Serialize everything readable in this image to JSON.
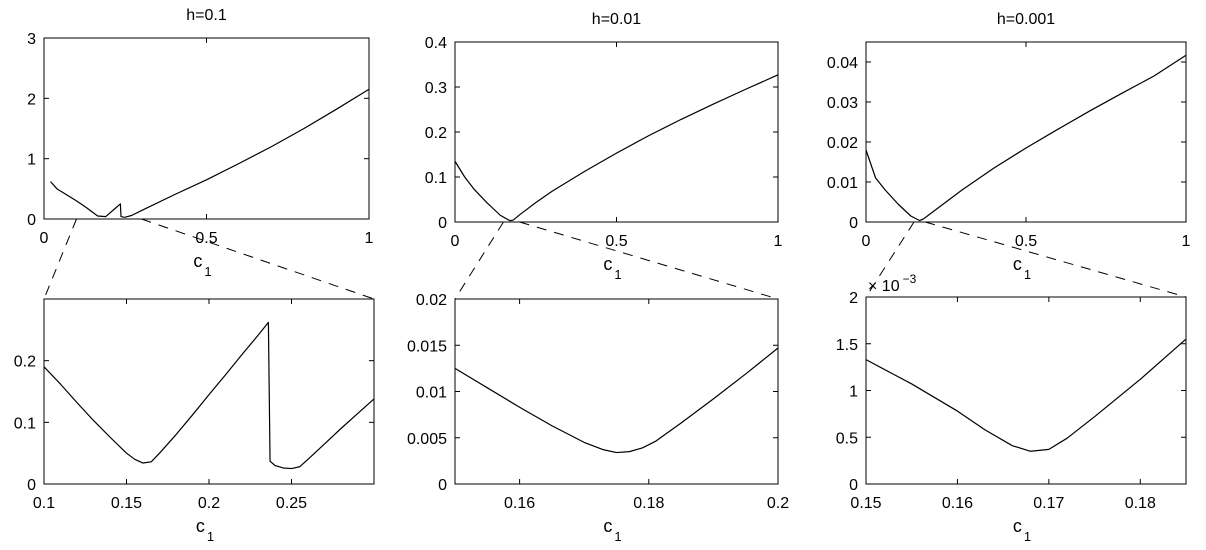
{
  "chart_data": [
    {
      "type": "line",
      "title": "h=0.1",
      "xlabel": "c",
      "xlabel_sub": "1",
      "xlim": [
        0,
        1
      ],
      "ylim": [
        0,
        3
      ],
      "xticks": [
        0,
        0.5,
        1
      ],
      "xtick_labels": [
        "0",
        "0.5",
        "1"
      ],
      "yticks": [
        0,
        1,
        2,
        3
      ],
      "ytick_labels": [
        "0",
        "1",
        "2",
        "3"
      ],
      "grid": false,
      "series": [
        {
          "x": [
            0.02,
            0.04,
            0.07,
            0.1,
            0.13,
            0.165,
            0.19,
            0.22,
            0.235,
            0.237,
            0.245,
            0.25,
            0.27,
            0.3,
            0.4,
            0.5,
            0.6,
            0.7,
            0.8,
            0.9,
            1.0
          ],
          "y": [
            0.62,
            0.5,
            0.4,
            0.3,
            0.19,
            0.05,
            0.04,
            0.18,
            0.25,
            0.04,
            0.03,
            0.03,
            0.06,
            0.14,
            0.4,
            0.65,
            0.92,
            1.2,
            1.5,
            1.82,
            2.15
          ]
        }
      ]
    },
    {
      "type": "line",
      "title": "h=0.01",
      "xlabel": "c",
      "xlabel_sub": "1",
      "xlim": [
        0,
        1
      ],
      "ylim": [
        0,
        0.4
      ],
      "xticks": [
        0,
        0.5,
        1
      ],
      "xtick_labels": [
        "0",
        "0.5",
        "1"
      ],
      "yticks": [
        0,
        0.1,
        0.2,
        0.3,
        0.4
      ],
      "ytick_labels": [
        "0",
        "0.1",
        "0.2",
        "0.3",
        "0.4"
      ],
      "grid": false,
      "series": [
        {
          "x": [
            0.0,
            0.03,
            0.06,
            0.1,
            0.14,
            0.17,
            0.18,
            0.2,
            0.25,
            0.3,
            0.4,
            0.5,
            0.6,
            0.7,
            0.8,
            0.9,
            1.0
          ],
          "y": [
            0.135,
            0.1,
            0.072,
            0.042,
            0.015,
            0.003,
            0.004,
            0.016,
            0.043,
            0.068,
            0.112,
            0.153,
            0.192,
            0.228,
            0.262,
            0.295,
            0.327
          ]
        }
      ]
    },
    {
      "type": "line",
      "title": "h=0.001",
      "xlabel": "c",
      "xlabel_sub": "1",
      "xlim": [
        0,
        1
      ],
      "ylim": [
        0,
        0.045
      ],
      "xticks": [
        0,
        0.5,
        1
      ],
      "xtick_labels": [
        "0",
        "0.5",
        "1"
      ],
      "yticks": [
        0,
        0.01,
        0.02,
        0.03,
        0.04
      ],
      "ytick_labels": [
        "0",
        "0.01",
        "0.02",
        "0.03",
        "0.04"
      ],
      "grid": false,
      "series": [
        {
          "x": [
            0.0,
            0.03,
            0.06,
            0.1,
            0.14,
            0.168,
            0.18,
            0.2,
            0.25,
            0.3,
            0.4,
            0.5,
            0.6,
            0.7,
            0.8,
            0.9,
            1.0
          ],
          "y": [
            0.018,
            0.011,
            0.008,
            0.0045,
            0.0015,
            0.00035,
            0.0008,
            0.002,
            0.005,
            0.008,
            0.0135,
            0.0185,
            0.0232,
            0.0278,
            0.0322,
            0.0365,
            0.0417
          ]
        }
      ]
    },
    {
      "type": "line",
      "title": "",
      "xlabel": "c",
      "xlabel_sub": "1",
      "xlim": [
        0.1,
        0.3
      ],
      "ylim": [
        0,
        0.3
      ],
      "xticks": [
        0.1,
        0.15,
        0.2,
        0.25
      ],
      "xtick_labels": [
        "0.1",
        "0.15",
        "0.2",
        "0.25"
      ],
      "yticks": [
        0,
        0.1,
        0.2
      ],
      "ytick_labels": [
        "0",
        "0.1",
        "0.2"
      ],
      "grid": false,
      "series": [
        {
          "x": [
            0.1,
            0.11,
            0.12,
            0.13,
            0.14,
            0.15,
            0.155,
            0.16,
            0.165,
            0.17,
            0.18,
            0.19,
            0.2,
            0.21,
            0.22,
            0.23,
            0.236,
            0.237,
            0.24,
            0.245,
            0.25,
            0.255,
            0.26,
            0.27,
            0.28,
            0.29,
            0.3
          ],
          "y": [
            0.19,
            0.162,
            0.132,
            0.103,
            0.076,
            0.05,
            0.04,
            0.034,
            0.036,
            0.05,
            0.08,
            0.112,
            0.145,
            0.177,
            0.21,
            0.242,
            0.262,
            0.037,
            0.03,
            0.026,
            0.025,
            0.028,
            0.04,
            0.065,
            0.09,
            0.114,
            0.138
          ]
        }
      ]
    },
    {
      "type": "line",
      "title": "",
      "xlabel": "c",
      "xlabel_sub": "1",
      "xlim": [
        0.15,
        0.2
      ],
      "ylim": [
        0,
        0.02
      ],
      "xticks": [
        0.16,
        0.18,
        0.2
      ],
      "xtick_labels": [
        "0.16",
        "0.18",
        "0.2"
      ],
      "yticks": [
        0,
        0.005,
        0.01,
        0.015,
        0.02
      ],
      "ytick_labels": [
        "0",
        "0.005",
        "0.01",
        "0.015",
        "0.02"
      ],
      "grid": false,
      "series": [
        {
          "x": [
            0.15,
            0.155,
            0.16,
            0.165,
            0.17,
            0.173,
            0.175,
            0.177,
            0.179,
            0.181,
            0.185,
            0.19,
            0.195,
            0.2
          ],
          "y": [
            0.0125,
            0.0104,
            0.0083,
            0.0063,
            0.0045,
            0.0037,
            0.0034,
            0.0035,
            0.0039,
            0.0046,
            0.0066,
            0.0092,
            0.0119,
            0.0147
          ]
        }
      ]
    },
    {
      "type": "line",
      "title": "",
      "xlabel": "c",
      "xlabel_sub": "1",
      "xlim": [
        0.15,
        0.185
      ],
      "ylim": [
        0,
        0.002
      ],
      "xticks": [
        0.15,
        0.16,
        0.17,
        0.18
      ],
      "xtick_labels": [
        "0.15",
        "0.16",
        "0.17",
        "0.18"
      ],
      "yticks": [
        0,
        0.0005,
        0.001,
        0.0015,
        0.002
      ],
      "ytick_labels": [
        "0",
        "0.5",
        "1",
        "1.5",
        "2"
      ],
      "y_exponent_label": "× 10",
      "y_exponent_power": "−3",
      "grid": false,
      "series": [
        {
          "x": [
            0.15,
            0.155,
            0.16,
            0.163,
            0.166,
            0.168,
            0.17,
            0.172,
            0.175,
            0.18,
            0.185
          ],
          "y": [
            0.00133,
            0.00107,
            0.00078,
            0.00058,
            0.00041,
            0.00035,
            0.00037,
            0.00049,
            0.00072,
            0.00112,
            0.00155
          ]
        }
      ]
    }
  ]
}
